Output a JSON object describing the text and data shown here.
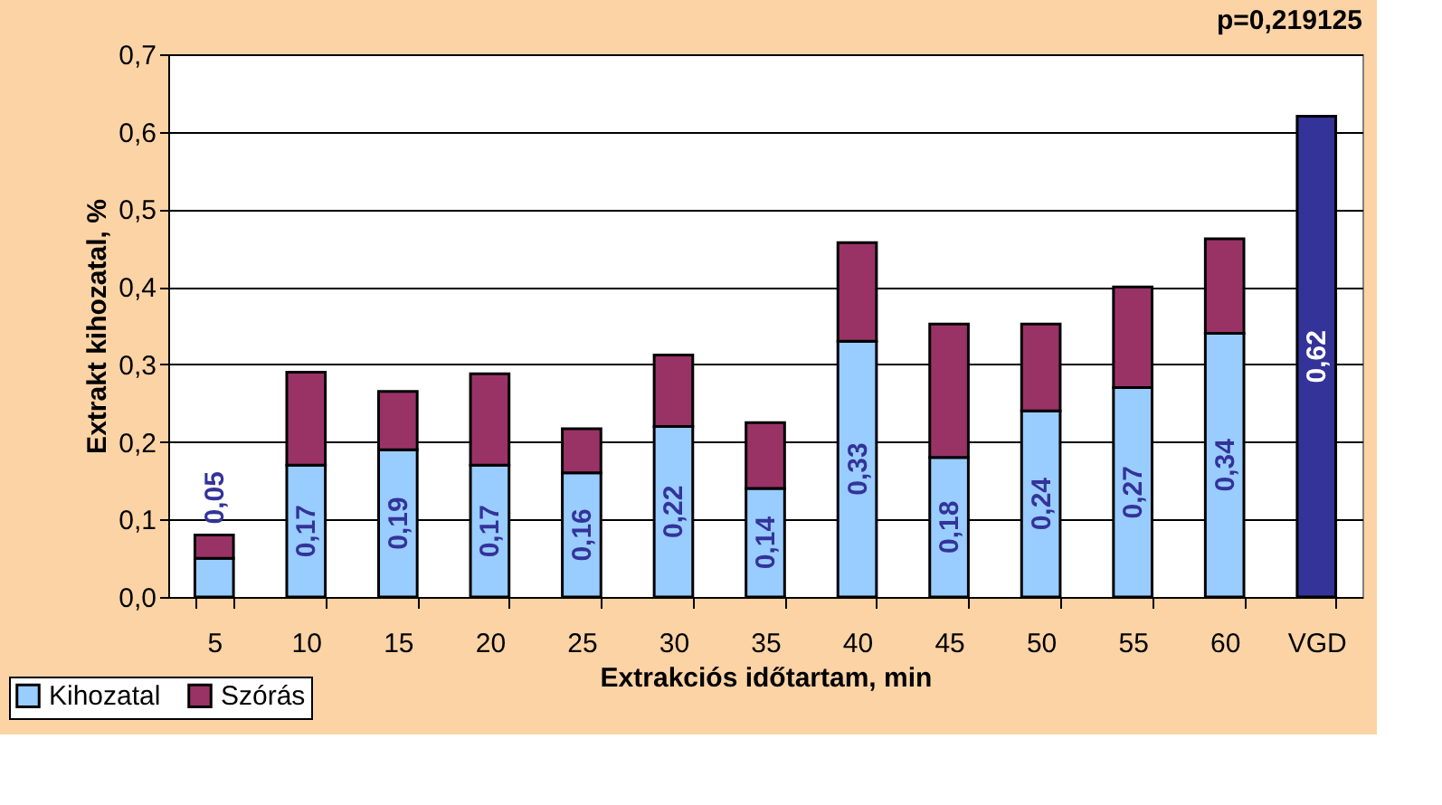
{
  "chart_data": {
    "type": "bar",
    "title": "p=0,219125",
    "xlabel": "Extrakciós időtartam, min",
    "ylabel": "Extrakt kihozatal, %",
    "categories": [
      "5",
      "10",
      "15",
      "20",
      "25",
      "30",
      "35",
      "40",
      "45",
      "50",
      "55",
      "60",
      "VGD"
    ],
    "stacked": true,
    "series": [
      {
        "name": "Kihozatal",
        "color": "#99ccff",
        "colors": [
          "#99ccff",
          "#99ccff",
          "#99ccff",
          "#99ccff",
          "#99ccff",
          "#99ccff",
          "#99ccff",
          "#99ccff",
          "#99ccff",
          "#99ccff",
          "#99ccff",
          "#99ccff",
          "#333399"
        ],
        "values": [
          0.05,
          0.17,
          0.19,
          0.17,
          0.16,
          0.22,
          0.14,
          0.33,
          0.18,
          0.24,
          0.27,
          0.34,
          0.62
        ],
        "value_labels": [
          "0,05",
          "0,17",
          "0,19",
          "0,17",
          "0,16",
          "0,22",
          "0,14",
          "0,33",
          "0,18",
          "0,24",
          "0,27",
          "0,34",
          "0,62"
        ]
      },
      {
        "name": "Szórás",
        "color": "#993366",
        "values": [
          0.03,
          0.12,
          0.075,
          0.118,
          0.057,
          0.092,
          0.085,
          0.127,
          0.172,
          0.112,
          0.13,
          0.122,
          null
        ]
      }
    ],
    "ylim": [
      0,
      0.7
    ],
    "yticks": [
      {
        "value": 0,
        "label": "0,0"
      },
      {
        "value": 0.1,
        "label": "0,1"
      },
      {
        "value": 0.2,
        "label": "0,2"
      },
      {
        "value": 0.3,
        "label": "0,3"
      },
      {
        "value": 0.4,
        "label": "0,4"
      },
      {
        "value": 0.5,
        "label": "0,5"
      },
      {
        "value": 0.6,
        "label": "0,6"
      },
      {
        "value": 0.7,
        "label": "0,7"
      }
    ],
    "grid": "y",
    "legend": "bottom left"
  }
}
